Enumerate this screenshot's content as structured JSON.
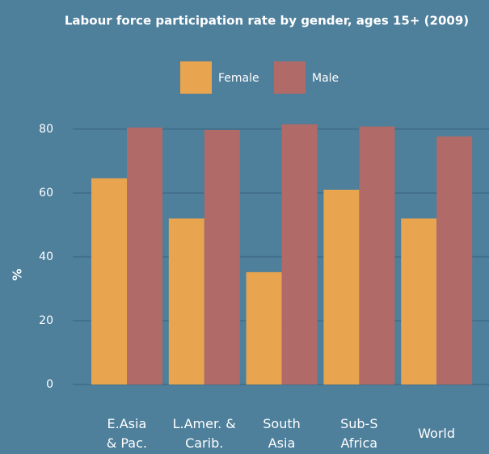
{
  "chart_data": {
    "type": "bar",
    "title": "Labour force participation rate by gender, ages 15+ (2009)",
    "y_label": "%",
    "categories": [
      "E.Asia\n& Pac.",
      "L.Amer. &\nCarib.",
      "South\nAsia",
      "Sub-S\nAfrica",
      "World"
    ],
    "series": [
      {
        "name": "Female",
        "color": "#e8a44e",
        "values": [
          64.6,
          52,
          35.2,
          61,
          52
        ]
      },
      {
        "name": "Male",
        "color": "#b06a68",
        "values": [
          80.5,
          79.7,
          81.5,
          80.8,
          77.7
        ]
      }
    ],
    "ylim": [
      0,
      85
    ],
    "yticks": [
      0,
      20,
      40,
      60,
      80
    ],
    "grid": true,
    "legend": "top"
  }
}
